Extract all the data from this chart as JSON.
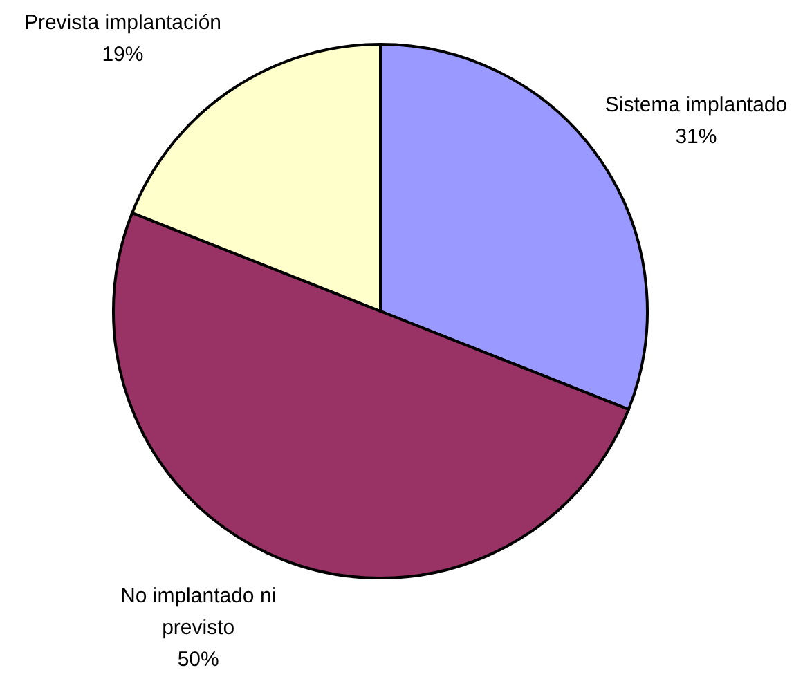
{
  "chart_data": {
    "type": "pie",
    "categories": [
      "Sistema implantado",
      "No implantado ni previsto",
      "Prevista implantación"
    ],
    "values": [
      31,
      50,
      19
    ],
    "colors": [
      "#9999ff",
      "#993366",
      "#ffffcc"
    ],
    "value_labels": [
      "31%",
      "50%",
      "19%"
    ]
  }
}
